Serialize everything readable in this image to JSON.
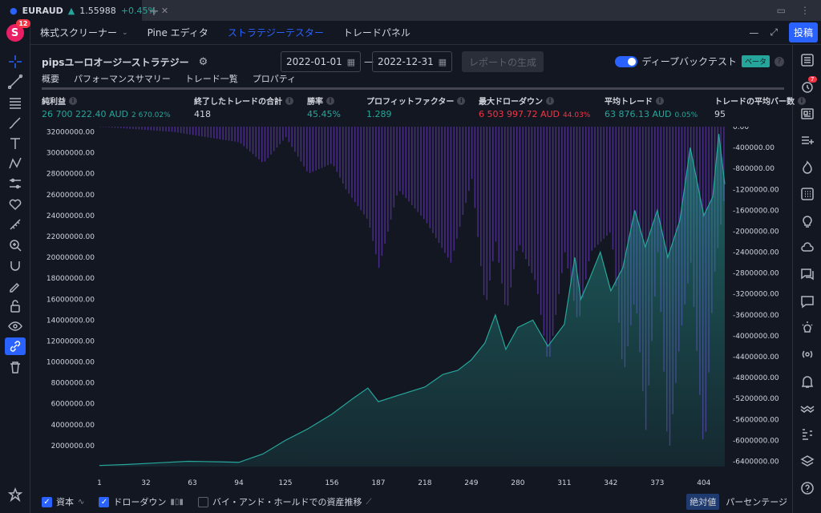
{
  "window": {
    "tab_symbol": "EURAUD",
    "tab_price": "1.55988",
    "tab_change": "+0.45%"
  },
  "header": {
    "tabs": [
      "株式スクリーナー",
      "Pine エディタ",
      "ストラテジーテスター",
      "トレードパネル"
    ],
    "post_label": "投稿"
  },
  "user": {
    "initial": "S",
    "notifications": "12"
  },
  "strategy": {
    "name": "pipsユーロオージーストラテジー",
    "date_from": "2022-01-01",
    "date_to": "2022-12-31",
    "generate_label": "レポートの生成",
    "deep_backtest_label": "ディープバックテスト",
    "beta_label": "ベータ",
    "deep_backtest_on": true
  },
  "subtabs": [
    "概要",
    "パフォーマンスサマリー",
    "トレード一覧",
    "プロパティ"
  ],
  "metrics": [
    {
      "label": "純利益",
      "value": "26 700 222.40 AUD",
      "pct": "2 670.02%",
      "color": "green"
    },
    {
      "label": "終了したトレードの合計",
      "value": "418",
      "pct": "",
      "color": "white"
    },
    {
      "label": "勝率",
      "value": "45.45%",
      "pct": "",
      "color": "green"
    },
    {
      "label": "プロフィットファクター",
      "value": "1.289",
      "pct": "",
      "color": "green"
    },
    {
      "label": "最大ドローダウン",
      "value": "6 503 997.72 AUD",
      "pct": "44.03%",
      "color": "red"
    },
    {
      "label": "平均トレード",
      "value": "63 876.13 AUD",
      "pct": "0.05%",
      "color": "green"
    },
    {
      "label": "トレードの平均バー数",
      "value": "95",
      "pct": "",
      "color": "white"
    }
  ],
  "legend": {
    "equity_label": "資本",
    "drawdown_label": "ドローダウン",
    "buyhold_label": "バイ・アンド・ホールドでの資産推移",
    "absolute_label": "絶対値",
    "percent_label": "パーセンテージ"
  },
  "right_toolbar_badge": "7",
  "chart_data": {
    "type": "area",
    "x_ticks": [
      1,
      32,
      63,
      94,
      125,
      156,
      187,
      218,
      249,
      280,
      311,
      342,
      373,
      404
    ],
    "y_left_ticks": [
      "2000000.00",
      "4000000.00",
      "6000000.00",
      "8000000.00",
      "10000000.00",
      "12000000.00",
      "14000000.00",
      "16000000.00",
      "18000000.00",
      "20000000.00",
      "22000000.00",
      "24000000.00",
      "26000000.00",
      "28000000.00",
      "30000000.00",
      "32000000.00"
    ],
    "y_right_ticks": [
      "0.00",
      "-400000.00",
      "-800000.00",
      "-1200000.00",
      "-1600000.00",
      "-2000000.00",
      "-2400000.00",
      "-2800000.00",
      "-3200000.00",
      "-3600000.00",
      "-4000000.00",
      "-4400000.00",
      "-4800000.00",
      "-5200000.00",
      "-5600000.00",
      "-6000000.00",
      "-6400000.00"
    ],
    "ylim_left": [
      0,
      32500000
    ],
    "ylim_right": [
      -6500000,
      0
    ],
    "xlim": [
      1,
      418
    ],
    "series": [
      {
        "name": "資本",
        "color": "#26a69a",
        "points": [
          [
            1,
            100000
          ],
          [
            20,
            200000
          ],
          [
            40,
            350000
          ],
          [
            60,
            500000
          ],
          [
            80,
            450000
          ],
          [
            94,
            400000
          ],
          [
            110,
            1200000
          ],
          [
            125,
            2500000
          ],
          [
            140,
            3600000
          ],
          [
            156,
            5000000
          ],
          [
            170,
            6500000
          ],
          [
            180,
            7500000
          ],
          [
            187,
            6200000
          ],
          [
            200,
            6800000
          ],
          [
            218,
            7600000
          ],
          [
            230,
            8800000
          ],
          [
            240,
            9200000
          ],
          [
            249,
            10200000
          ],
          [
            258,
            11800000
          ],
          [
            265,
            14500000
          ],
          [
            272,
            11200000
          ],
          [
            280,
            13300000
          ],
          [
            290,
            14000000
          ],
          [
            300,
            11500000
          ],
          [
            311,
            13600000
          ],
          [
            318,
            20000000
          ],
          [
            322,
            16000000
          ],
          [
            328,
            18000000
          ],
          [
            335,
            20500000
          ],
          [
            342,
            16800000
          ],
          [
            350,
            19000000
          ],
          [
            358,
            24500000
          ],
          [
            365,
            21000000
          ],
          [
            373,
            24500000
          ],
          [
            380,
            20000000
          ],
          [
            388,
            23500000
          ],
          [
            395,
            30500000
          ],
          [
            404,
            24000000
          ],
          [
            410,
            25800000
          ],
          [
            414,
            31800000
          ],
          [
            418,
            27000000
          ]
        ]
      },
      {
        "name": "ドローダウン",
        "color": "#7b3fe4",
        "points": [
          [
            1,
            0
          ],
          [
            50,
            -100000
          ],
          [
            94,
            -300000
          ],
          [
            110,
            -700000
          ],
          [
            125,
            -200000
          ],
          [
            140,
            -900000
          ],
          [
            156,
            -700000
          ],
          [
            165,
            -1200000
          ],
          [
            180,
            -1800000
          ],
          [
            187,
            -2700000
          ],
          [
            200,
            -1200000
          ],
          [
            218,
            -1800000
          ],
          [
            235,
            -2600000
          ],
          [
            249,
            -1000000
          ],
          [
            258,
            -3500000
          ],
          [
            265,
            -2200000
          ],
          [
            272,
            -3600000
          ],
          [
            280,
            -2200000
          ],
          [
            292,
            -3000000
          ],
          [
            300,
            -4600000
          ],
          [
            311,
            -2400000
          ],
          [
            320,
            -3800000
          ],
          [
            328,
            -2400000
          ],
          [
            342,
            -2000000
          ],
          [
            350,
            -4800000
          ],
          [
            358,
            -3200000
          ],
          [
            365,
            -5800000
          ],
          [
            373,
            -2400000
          ],
          [
            380,
            -6400000
          ],
          [
            388,
            -4000000
          ],
          [
            395,
            -2600000
          ],
          [
            404,
            -6400000
          ],
          [
            410,
            -3000000
          ],
          [
            418,
            -1200000
          ]
        ]
      }
    ]
  }
}
